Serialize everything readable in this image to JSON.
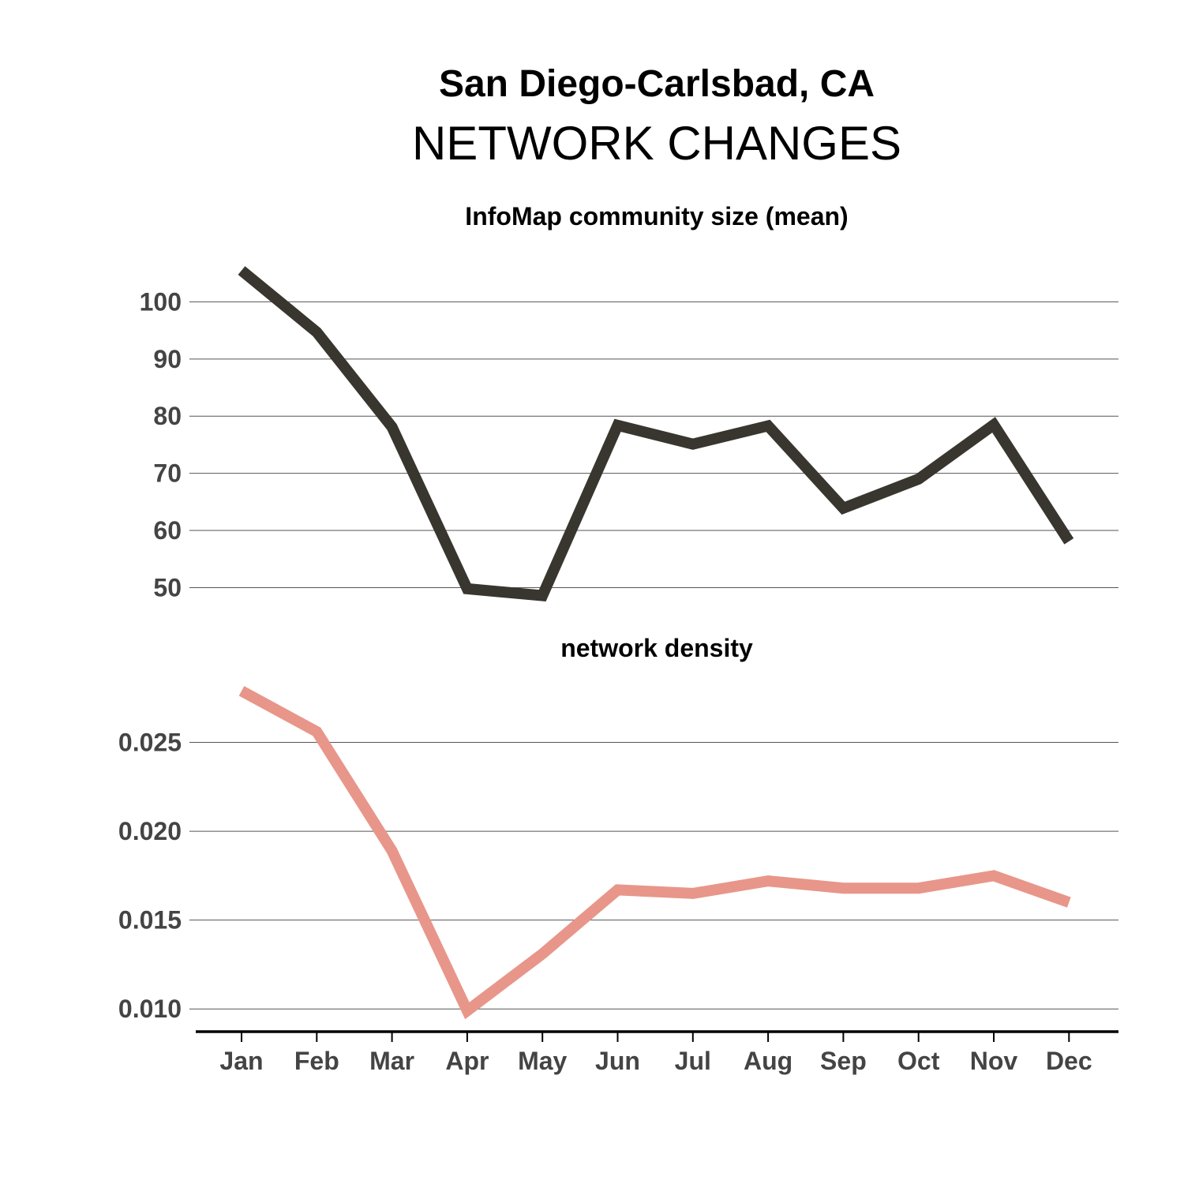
{
  "title": "San Diego-Carlsbad, CA",
  "subtitle": "NETWORK CHANGES",
  "colors": {
    "community_line": "#38362e",
    "density_line": "#e8968a",
    "tick_text": "#444444",
    "grid": "#555555",
    "axis": "#000000"
  },
  "chart_data": [
    {
      "type": "line",
      "title": "InfoMap community size (mean)",
      "categories": [
        "Jan",
        "Feb",
        "Mar",
        "Apr",
        "May",
        "Jun",
        "Jul",
        "Aug",
        "Sep",
        "Oct",
        "Nov",
        "Dec"
      ],
      "values": [
        105.5,
        94.7,
        78.1,
        49.8,
        48.6,
        78.4,
        75.1,
        78.3,
        63.9,
        69.0,
        78.5,
        58.1
      ],
      "yticks": [
        50,
        60,
        70,
        80,
        90,
        100
      ],
      "ytick_labels": [
        "50",
        "60",
        "70",
        "80",
        "90",
        "100"
      ],
      "ylim": [
        44.4,
        110.0
      ],
      "grid": true,
      "xlabel": "",
      "ylabel": ""
    },
    {
      "type": "line",
      "title": "network density",
      "categories": [
        "Jan",
        "Feb",
        "Mar",
        "Apr",
        "May",
        "Jun",
        "Jul",
        "Aug",
        "Sep",
        "Oct",
        "Nov",
        "Dec"
      ],
      "values": [
        0.0279,
        0.0256,
        0.0189,
        0.0099,
        0.0131,
        0.0167,
        0.0165,
        0.0172,
        0.0168,
        0.0168,
        0.0175,
        0.016
      ],
      "yticks": [
        0.01,
        0.015,
        0.02,
        0.025
      ],
      "ytick_labels": [
        "0.010",
        "0.015",
        "0.020",
        "0.025"
      ],
      "ylim": [
        0.0089,
        0.0288
      ],
      "grid": true,
      "xlabel": "",
      "ylabel": ""
    }
  ]
}
